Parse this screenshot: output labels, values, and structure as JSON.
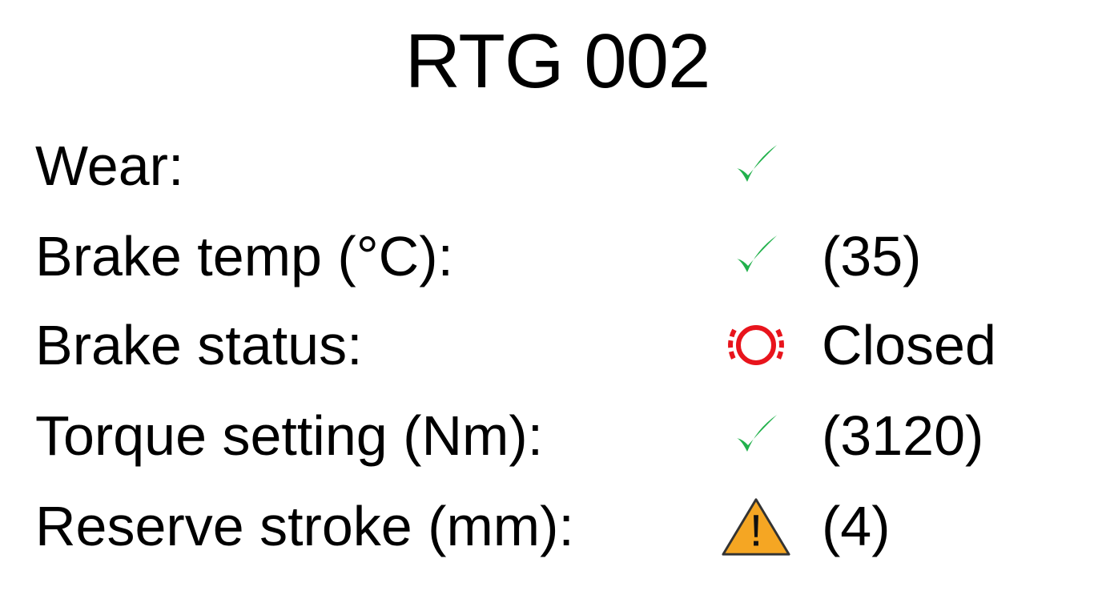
{
  "title": "RTG 002",
  "colors": {
    "ok": "#22b14c",
    "alarm": "#e8141c",
    "warning_fill": "#f5a623",
    "warning_stroke": "#333333",
    "text": "#000000"
  },
  "rows": [
    {
      "label": "Wear:",
      "status_icon": "checkmark-icon",
      "value": ""
    },
    {
      "label": "Brake temp (°C):",
      "status_icon": "checkmark-icon",
      "value": "(35)"
    },
    {
      "label": "Brake status:",
      "status_icon": "brake-warning-icon",
      "value": "Closed"
    },
    {
      "label": "Torque setting (Nm):",
      "status_icon": "checkmark-icon",
      "value": "(3120)"
    },
    {
      "label": "Reserve stroke (mm):",
      "status_icon": "warning-triangle-icon",
      "value": "(4)"
    }
  ]
}
